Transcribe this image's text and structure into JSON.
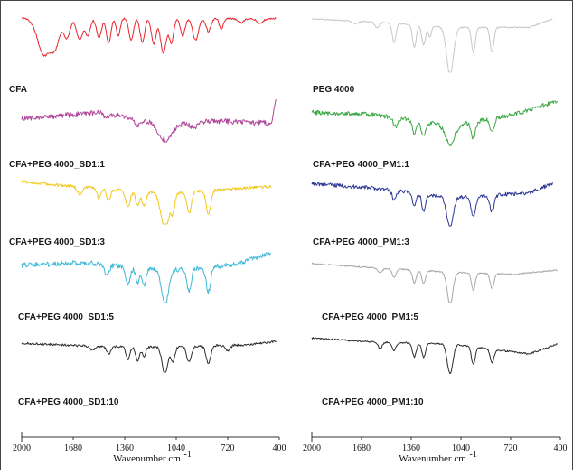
{
  "chart_data": {
    "type": "line",
    "description_axis": {
      "xlabel": "Wavenumber cm-1",
      "xlim": [
        2000,
        400
      ],
      "ticks": [
        2000,
        1680,
        1360,
        1040,
        720,
        400
      ]
    },
    "panels": [
      {
        "column": "left",
        "xlabel": "Wavenumber cm",
        "xlabel_sup": "-1",
        "xlim": [
          2000,
          400
        ],
        "ticks": [
          2000,
          1680,
          1360,
          1040,
          720,
          400
        ],
        "series": [
          {
            "name": "CFA",
            "color": "#e8232b",
            "noise": 0.02,
            "baseline": [
              [
                2000,
                0.05
              ],
              [
                1800,
                0.05
              ],
              [
                400,
                0.05
              ]
            ],
            "bands": [
              [
                1860,
                0.85,
                40
              ],
              [
                1790,
                0.55,
                25
              ],
              [
                1720,
                0.45,
                20
              ],
              [
                1640,
                0.5,
                18
              ],
              [
                1590,
                0.4,
                15
              ],
              [
                1520,
                0.45,
                15
              ],
              [
                1460,
                0.55,
                14
              ],
              [
                1400,
                0.4,
                12
              ],
              [
                1320,
                0.5,
                14
              ],
              [
                1250,
                0.55,
                14
              ],
              [
                1180,
                0.6,
                14
              ],
              [
                1120,
                0.8,
                18
              ],
              [
                1070,
                0.55,
                14
              ],
              [
                1000,
                0.4,
                14
              ],
              [
                920,
                0.5,
                18
              ],
              [
                840,
                0.3,
                15
              ],
              [
                760,
                0.25,
                12
              ],
              [
                640,
                0.1,
                20
              ],
              [
                520,
                0.12,
                20
              ]
            ]
          },
          {
            "name": "CFA+PEG 4000_SD1:1",
            "color": "#b0449a",
            "noise": 0.06,
            "baseline": [
              [
                2000,
                0.45
              ],
              [
                1500,
                0.3
              ],
              [
                1100,
                0.6
              ],
              [
                800,
                0.5
              ],
              [
                450,
                0.55
              ],
              [
                420,
                0.0
              ]
            ],
            "bands": [
              [
                1110,
                0.35,
                40
              ],
              [
                1280,
                0.15,
                20
              ],
              [
                1470,
                0.1,
                20
              ],
              [
                930,
                0.1,
                20
              ]
            ]
          },
          {
            "name": "CFA+PEG 4000_SD1:3",
            "color": "#f1c81c",
            "noise": 0.03,
            "baseline": [
              [
                2000,
                0.1
              ],
              [
                1500,
                0.25
              ],
              [
                1100,
                0.35
              ],
              [
                450,
                0.2
              ]
            ],
            "bands": [
              [
                1340,
                0.35,
                14
              ],
              [
                1280,
                0.3,
                12
              ],
              [
                1240,
                0.3,
                12
              ],
              [
                1110,
                0.75,
                25
              ],
              [
                1060,
                0.35,
                12
              ],
              [
                960,
                0.45,
                14
              ],
              [
                840,
                0.5,
                14
              ],
              [
                1460,
                0.25,
                12
              ],
              [
                1520,
                0.2,
                12
              ],
              [
                1640,
                0.15,
                15
              ]
            ]
          },
          {
            "name": "CFA+PEG 4000_SD1:5",
            "color": "#3db8d6",
            "noise": 0.05,
            "baseline": [
              [
                2000,
                0.25
              ],
              [
                1600,
                0.2
              ],
              [
                1100,
                0.35
              ],
              [
                700,
                0.25
              ],
              [
                450,
                0.0
              ]
            ],
            "bands": [
              [
                1340,
                0.35,
                14
              ],
              [
                1280,
                0.3,
                12
              ],
              [
                1110,
                0.7,
                22
              ],
              [
                960,
                0.45,
                14
              ],
              [
                840,
                0.5,
                14
              ],
              [
                1470,
                0.2,
                15
              ],
              [
                1240,
                0.35,
                12
              ]
            ]
          },
          {
            "name": "CFA+PEG 4000_SD1:10",
            "color": "#2b2b2b",
            "noise": 0.03,
            "baseline": [
              [
                2000,
                0.2
              ],
              [
                1500,
                0.3
              ],
              [
                1100,
                0.3
              ],
              [
                600,
                0.25
              ],
              [
                420,
                0.15
              ]
            ],
            "bands": [
              [
                1340,
                0.35,
                12
              ],
              [
                1280,
                0.4,
                12
              ],
              [
                1240,
                0.3,
                10
              ],
              [
                1110,
                0.75,
                18
              ],
              [
                1060,
                0.4,
                12
              ],
              [
                960,
                0.45,
                14
              ],
              [
                840,
                0.5,
                14
              ],
              [
                1460,
                0.2,
                12
              ],
              [
                1560,
                0.1,
                15
              ],
              [
                720,
                0.15,
                15
              ]
            ]
          }
        ]
      },
      {
        "column": "right",
        "xlabel": "Wavenumber cm",
        "xlabel_sup": "-1",
        "xlim": [
          2000,
          400
        ],
        "ticks": [
          2000,
          1680,
          1360,
          1040,
          720,
          400
        ],
        "series": [
          {
            "name": "PEG 4000",
            "color": "#c7c7c7",
            "noise": 0.01,
            "baseline": [
              [
                2000,
                0.05
              ],
              [
                1600,
                0.1
              ],
              [
                1100,
                0.2
              ],
              [
                600,
                0.2
              ],
              [
                450,
                0.05
              ]
            ],
            "bands": [
              [
                1470,
                0.35,
                12
              ],
              [
                1340,
                0.4,
                12
              ],
              [
                1280,
                0.35,
                12
              ],
              [
                1240,
                0.2,
                10
              ],
              [
                1110,
                0.85,
                22
              ],
              [
                960,
                0.45,
                12
              ],
              [
                840,
                0.45,
                12
              ],
              [
                1720,
                0.05,
                20
              ],
              [
                1580,
                0.1,
                15
              ]
            ]
          },
          {
            "name": "CFA+PEG 4000_PM1:1",
            "color": "#3aa845",
            "noise": 0.05,
            "baseline": [
              [
                2000,
                0.25
              ],
              [
                1600,
                0.3
              ],
              [
                1100,
                0.55
              ],
              [
                700,
                0.3
              ],
              [
                420,
                0.0
              ]
            ],
            "bands": [
              [
                1110,
                0.4,
                30
              ],
              [
                1280,
                0.3,
                15
              ],
              [
                1340,
                0.3,
                12
              ],
              [
                960,
                0.35,
                14
              ],
              [
                840,
                0.3,
                14
              ],
              [
                1460,
                0.2,
                15
              ]
            ]
          },
          {
            "name": "CFA+PEG 4000_PM1:3",
            "color": "#2c3694",
            "noise": 0.04,
            "baseline": [
              [
                2000,
                0.1
              ],
              [
                1600,
                0.2
              ],
              [
                1100,
                0.4
              ],
              [
                600,
                0.3
              ],
              [
                450,
                0.1
              ]
            ],
            "bands": [
              [
                1110,
                0.65,
                20
              ],
              [
                1340,
                0.3,
                12
              ],
              [
                1280,
                0.35,
                12
              ],
              [
                960,
                0.45,
                14
              ],
              [
                840,
                0.35,
                14
              ],
              [
                1470,
                0.2,
                12
              ]
            ]
          },
          {
            "name": "CFA+PEG 4000_PM1:5",
            "color": "#a7a7a7",
            "noise": 0.015,
            "baseline": [
              [
                2000,
                0.1
              ],
              [
                1600,
                0.2
              ],
              [
                1100,
                0.3
              ],
              [
                700,
                0.35
              ],
              [
                420,
                0.25
              ]
            ],
            "bands": [
              [
                1110,
                0.75,
                18
              ],
              [
                1340,
                0.3,
                12
              ],
              [
                1280,
                0.3,
                12
              ],
              [
                960,
                0.4,
                12
              ],
              [
                840,
                0.35,
                12
              ],
              [
                1470,
                0.2,
                12
              ],
              [
                1560,
                0.1,
                14
              ]
            ]
          },
          {
            "name": "CFA+PEG 4000_PM1:10",
            "color": "#2b2b2b",
            "noise": 0.02,
            "baseline": [
              [
                2000,
                0.1
              ],
              [
                1600,
                0.2
              ],
              [
                1100,
                0.25
              ],
              [
                600,
                0.5
              ],
              [
                420,
                0.25
              ]
            ],
            "bands": [
              [
                1110,
                0.75,
                18
              ],
              [
                1340,
                0.35,
                12
              ],
              [
                1280,
                0.35,
                12
              ],
              [
                960,
                0.45,
                12
              ],
              [
                840,
                0.35,
                12
              ],
              [
                1470,
                0.2,
                12
              ],
              [
                1560,
                0.15,
                14
              ]
            ]
          }
        ]
      }
    ]
  },
  "labels": {
    "left": [
      "CFA",
      "CFA+PEG 4000_SD1:1",
      "CFA+PEG 4000_SD1:3",
      "CFA+PEG 4000_SD1:5",
      "CFA+PEG 4000_SD1:10"
    ],
    "right": [
      "PEG 4000",
      "CFA+PEG 4000_PM1:1",
      "CFA+PEG 4000_PM1:3",
      "CFA+PEG 4000_PM1:5",
      "CFA+PEG 4000_PM1:10"
    ]
  }
}
